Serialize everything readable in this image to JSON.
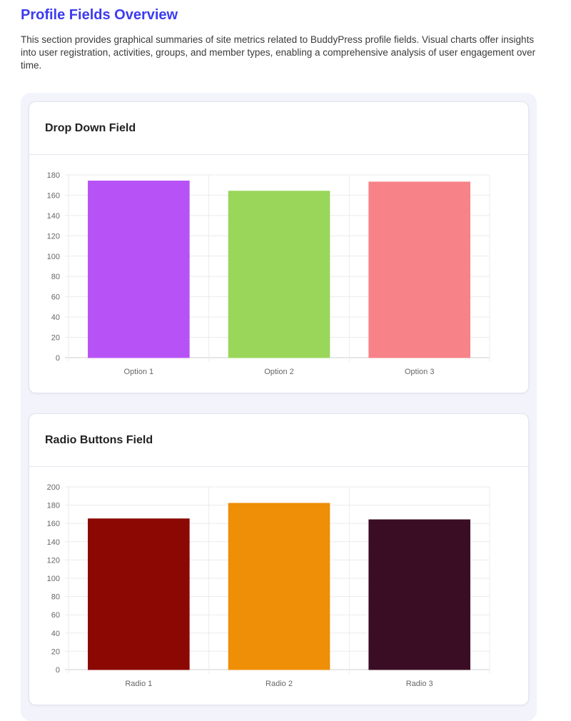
{
  "header": {
    "title": "Profile Fields Overview",
    "description": "This section provides graphical summaries of site metrics related to BuddyPress profile fields. Visual charts offer insights into user registration, activities, groups, and member types, enabling a comprehensive analysis of user engagement over time."
  },
  "chart_data": [
    {
      "type": "bar",
      "title": "Drop Down Field",
      "categories": [
        "Option 1",
        "Option 2",
        "Option 3"
      ],
      "values": [
        174,
        164,
        173
      ],
      "colors": [
        "#b753f6",
        "#99d65a",
        "#f78288"
      ],
      "ylim": [
        0,
        180
      ],
      "ystep": 20,
      "grid": true
    },
    {
      "type": "bar",
      "title": "Radio Buttons Field",
      "categories": [
        "Radio 1",
        "Radio 2",
        "Radio 3"
      ],
      "values": [
        165,
        182,
        164
      ],
      "colors": [
        "#8b0803",
        "#ef8e07",
        "#3b0d24"
      ],
      "ylim": [
        0,
        200
      ],
      "ystep": 20,
      "grid": true
    }
  ]
}
